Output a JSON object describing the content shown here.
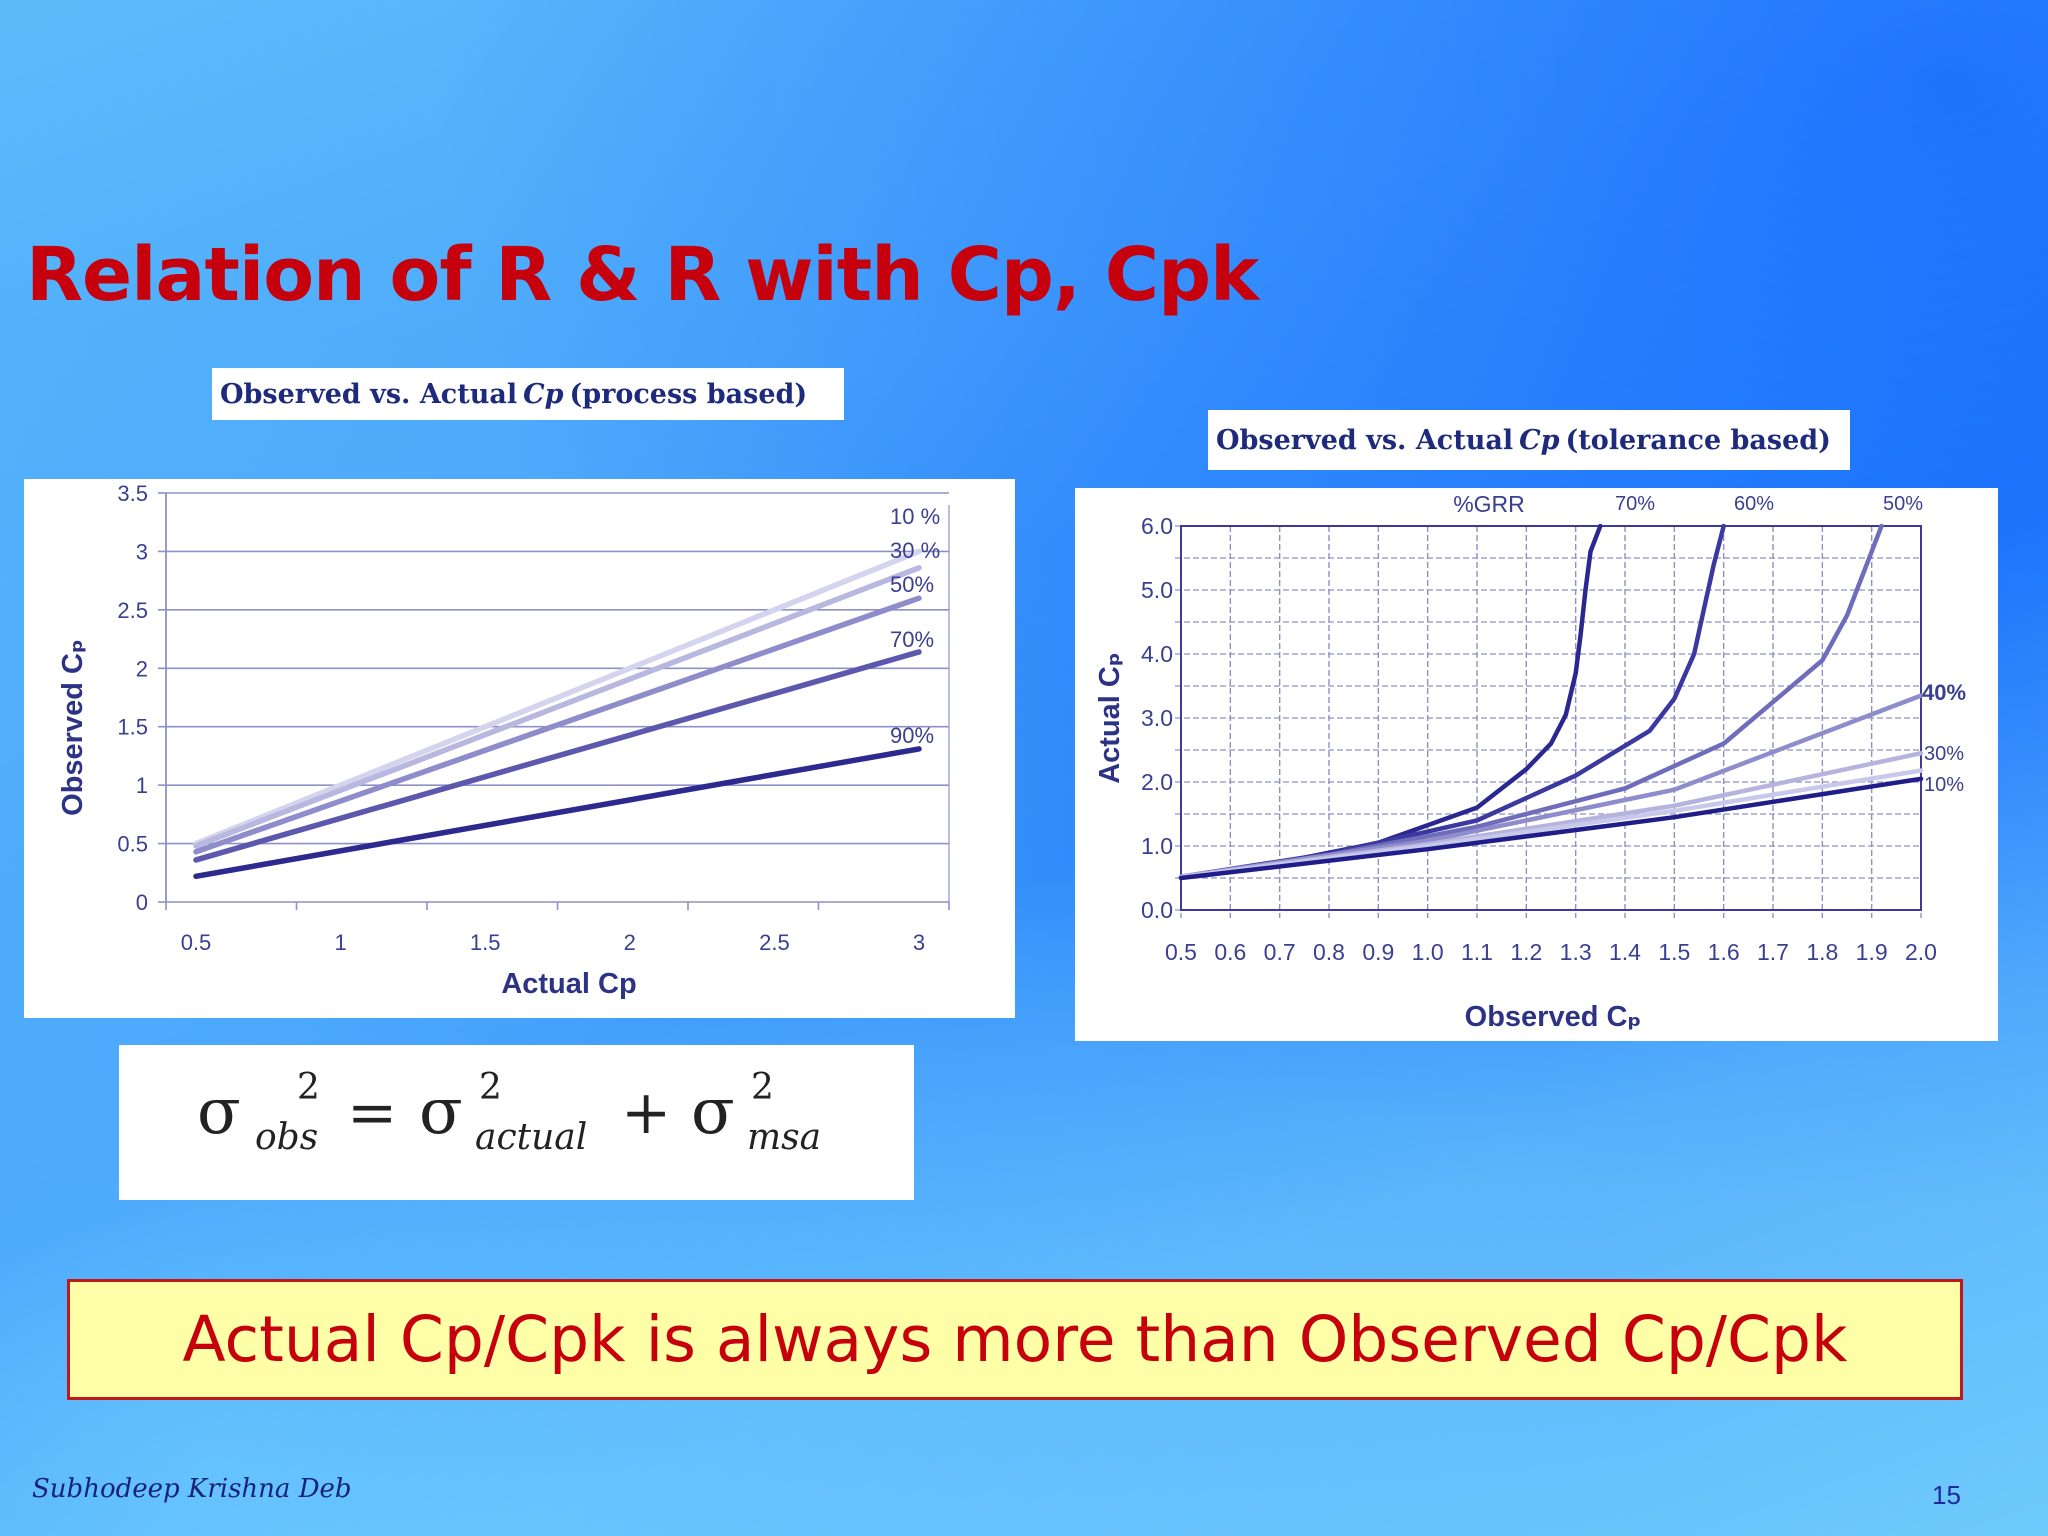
{
  "slide": {
    "title": "Relation of R & R with Cp, Cpk",
    "author": "Subhodeep Krishna Deb",
    "page_number": "15",
    "highlight": "Actual Cp/Cpk is always more than Observed Cp/Cpk"
  },
  "captions": {
    "left": {
      "prefix": "Observed vs. Actual",
      "italic": "Cp",
      "suffix": "(process based)"
    },
    "right": {
      "prefix": "Observed vs. Actual",
      "italic": "Cp",
      "suffix": "(tolerance based)"
    }
  },
  "formula": {
    "base": "σ",
    "exponent": "2",
    "sub_obs": "obs",
    "sub_actual": "actual",
    "sub_msa": "msa",
    "equals": "=",
    "plus": "+"
  },
  "colors": {
    "title": "#c6000d",
    "highlight_bg": "#ffffa8",
    "highlight_border": "#c21818",
    "grid": "#8f90c8",
    "axis_text": "#3b3f8f"
  },
  "chart_data": [
    {
      "type": "line",
      "xlabel": "Actual Cp",
      "ylabel": "Observed Cₚ",
      "xlim": [
        0.5,
        3
      ],
      "ylim": [
        0,
        3.5
      ],
      "x_ticks": [
        "0.5",
        "1",
        "1.5",
        "2",
        "2.5",
        "3"
      ],
      "y_ticks": [
        "0",
        "0.5",
        "1",
        "1.5",
        "2",
        "2.5",
        "3",
        "3.5"
      ],
      "grid": true,
      "series": [
        {
          "name": "10 %",
          "color": "#d4d4ee",
          "x": [
            0.5,
            3
          ],
          "y": [
            0.5,
            3.0
          ]
        },
        {
          "name": "30 %",
          "color": "#b7b7e0",
          "x": [
            0.5,
            3
          ],
          "y": [
            0.48,
            2.86
          ]
        },
        {
          "name": "50%",
          "color": "#8e8ccb",
          "x": [
            0.5,
            3
          ],
          "y": [
            0.43,
            2.6
          ]
        },
        {
          "name": "70%",
          "color": "#5c58ad",
          "x": [
            0.5,
            3
          ],
          "y": [
            0.36,
            2.14
          ]
        },
        {
          "name": "90%",
          "color": "#2d2a8f",
          "x": [
            0.5,
            3
          ],
          "y": [
            0.22,
            1.31
          ]
        }
      ]
    },
    {
      "type": "line",
      "xlabel": "Observed Cₚ",
      "ylabel": "Actual Cₚ",
      "xlim": [
        0.5,
        2.0
      ],
      "ylim": [
        0.0,
        6.0
      ],
      "x_ticks": [
        "0.5",
        "0.6",
        "0.7",
        "0.8",
        "0.9",
        "1.0",
        "1.1",
        "1.2",
        "1.3",
        "1.4",
        "1.5",
        "1.6",
        "1.7",
        "1.8",
        "1.9",
        "2.0"
      ],
      "y_ticks": [
        "0.0",
        "1.0",
        "2.0",
        "3.0",
        "4.0",
        "5.0",
        "6.0"
      ],
      "grid": true,
      "top_label": "%GRR",
      "series": [
        {
          "name": "70%",
          "color": "#2a2890",
          "x": [
            0.5,
            0.7,
            0.9,
            1.1,
            1.2,
            1.25,
            1.28,
            1.3,
            1.31,
            1.32,
            1.33,
            1.35
          ],
          "y": [
            0.51,
            0.74,
            1.05,
            1.6,
            2.2,
            2.6,
            3.05,
            3.7,
            4.3,
            5.0,
            5.6,
            6.0
          ]
        },
        {
          "name": "60%",
          "color": "#3b38a0",
          "x": [
            0.5,
            0.8,
            1.1,
            1.3,
            1.45,
            1.5,
            1.54,
            1.56,
            1.58,
            1.6
          ],
          "y": [
            0.52,
            0.88,
            1.4,
            2.1,
            2.8,
            3.3,
            4.0,
            4.7,
            5.4,
            6.0
          ]
        },
        {
          "name": "50%",
          "color": "#6f6cbc",
          "x": [
            0.5,
            0.8,
            1.1,
            1.4,
            1.6,
            1.8,
            1.85,
            1.9,
            1.92
          ],
          "y": [
            0.52,
            0.86,
            1.3,
            1.9,
            2.6,
            3.9,
            4.6,
            5.6,
            6.0
          ]
        },
        {
          "name": "40%",
          "color": "#8e8cca",
          "x": [
            0.5,
            1.0,
            1.5,
            2.0
          ],
          "y": [
            0.52,
            1.08,
            1.88,
            3.35
          ]
        },
        {
          "name": "30%",
          "color": "#b6b4df",
          "x": [
            0.5,
            1.0,
            1.5,
            2.0
          ],
          "y": [
            0.52,
            1.03,
            1.63,
            2.45
          ]
        },
        {
          "name": "10%",
          "color": "#c8c8ea",
          "x": [
            0.5,
            1.0,
            1.5,
            2.0
          ],
          "y": [
            0.51,
            1.0,
            1.55,
            2.18
          ]
        },
        {
          "name": "",
          "color": "#1f1d88",
          "x": [
            0.5,
            1.0,
            1.5,
            2.0
          ],
          "y": [
            0.5,
            0.95,
            1.45,
            2.05
          ]
        }
      ]
    }
  ]
}
